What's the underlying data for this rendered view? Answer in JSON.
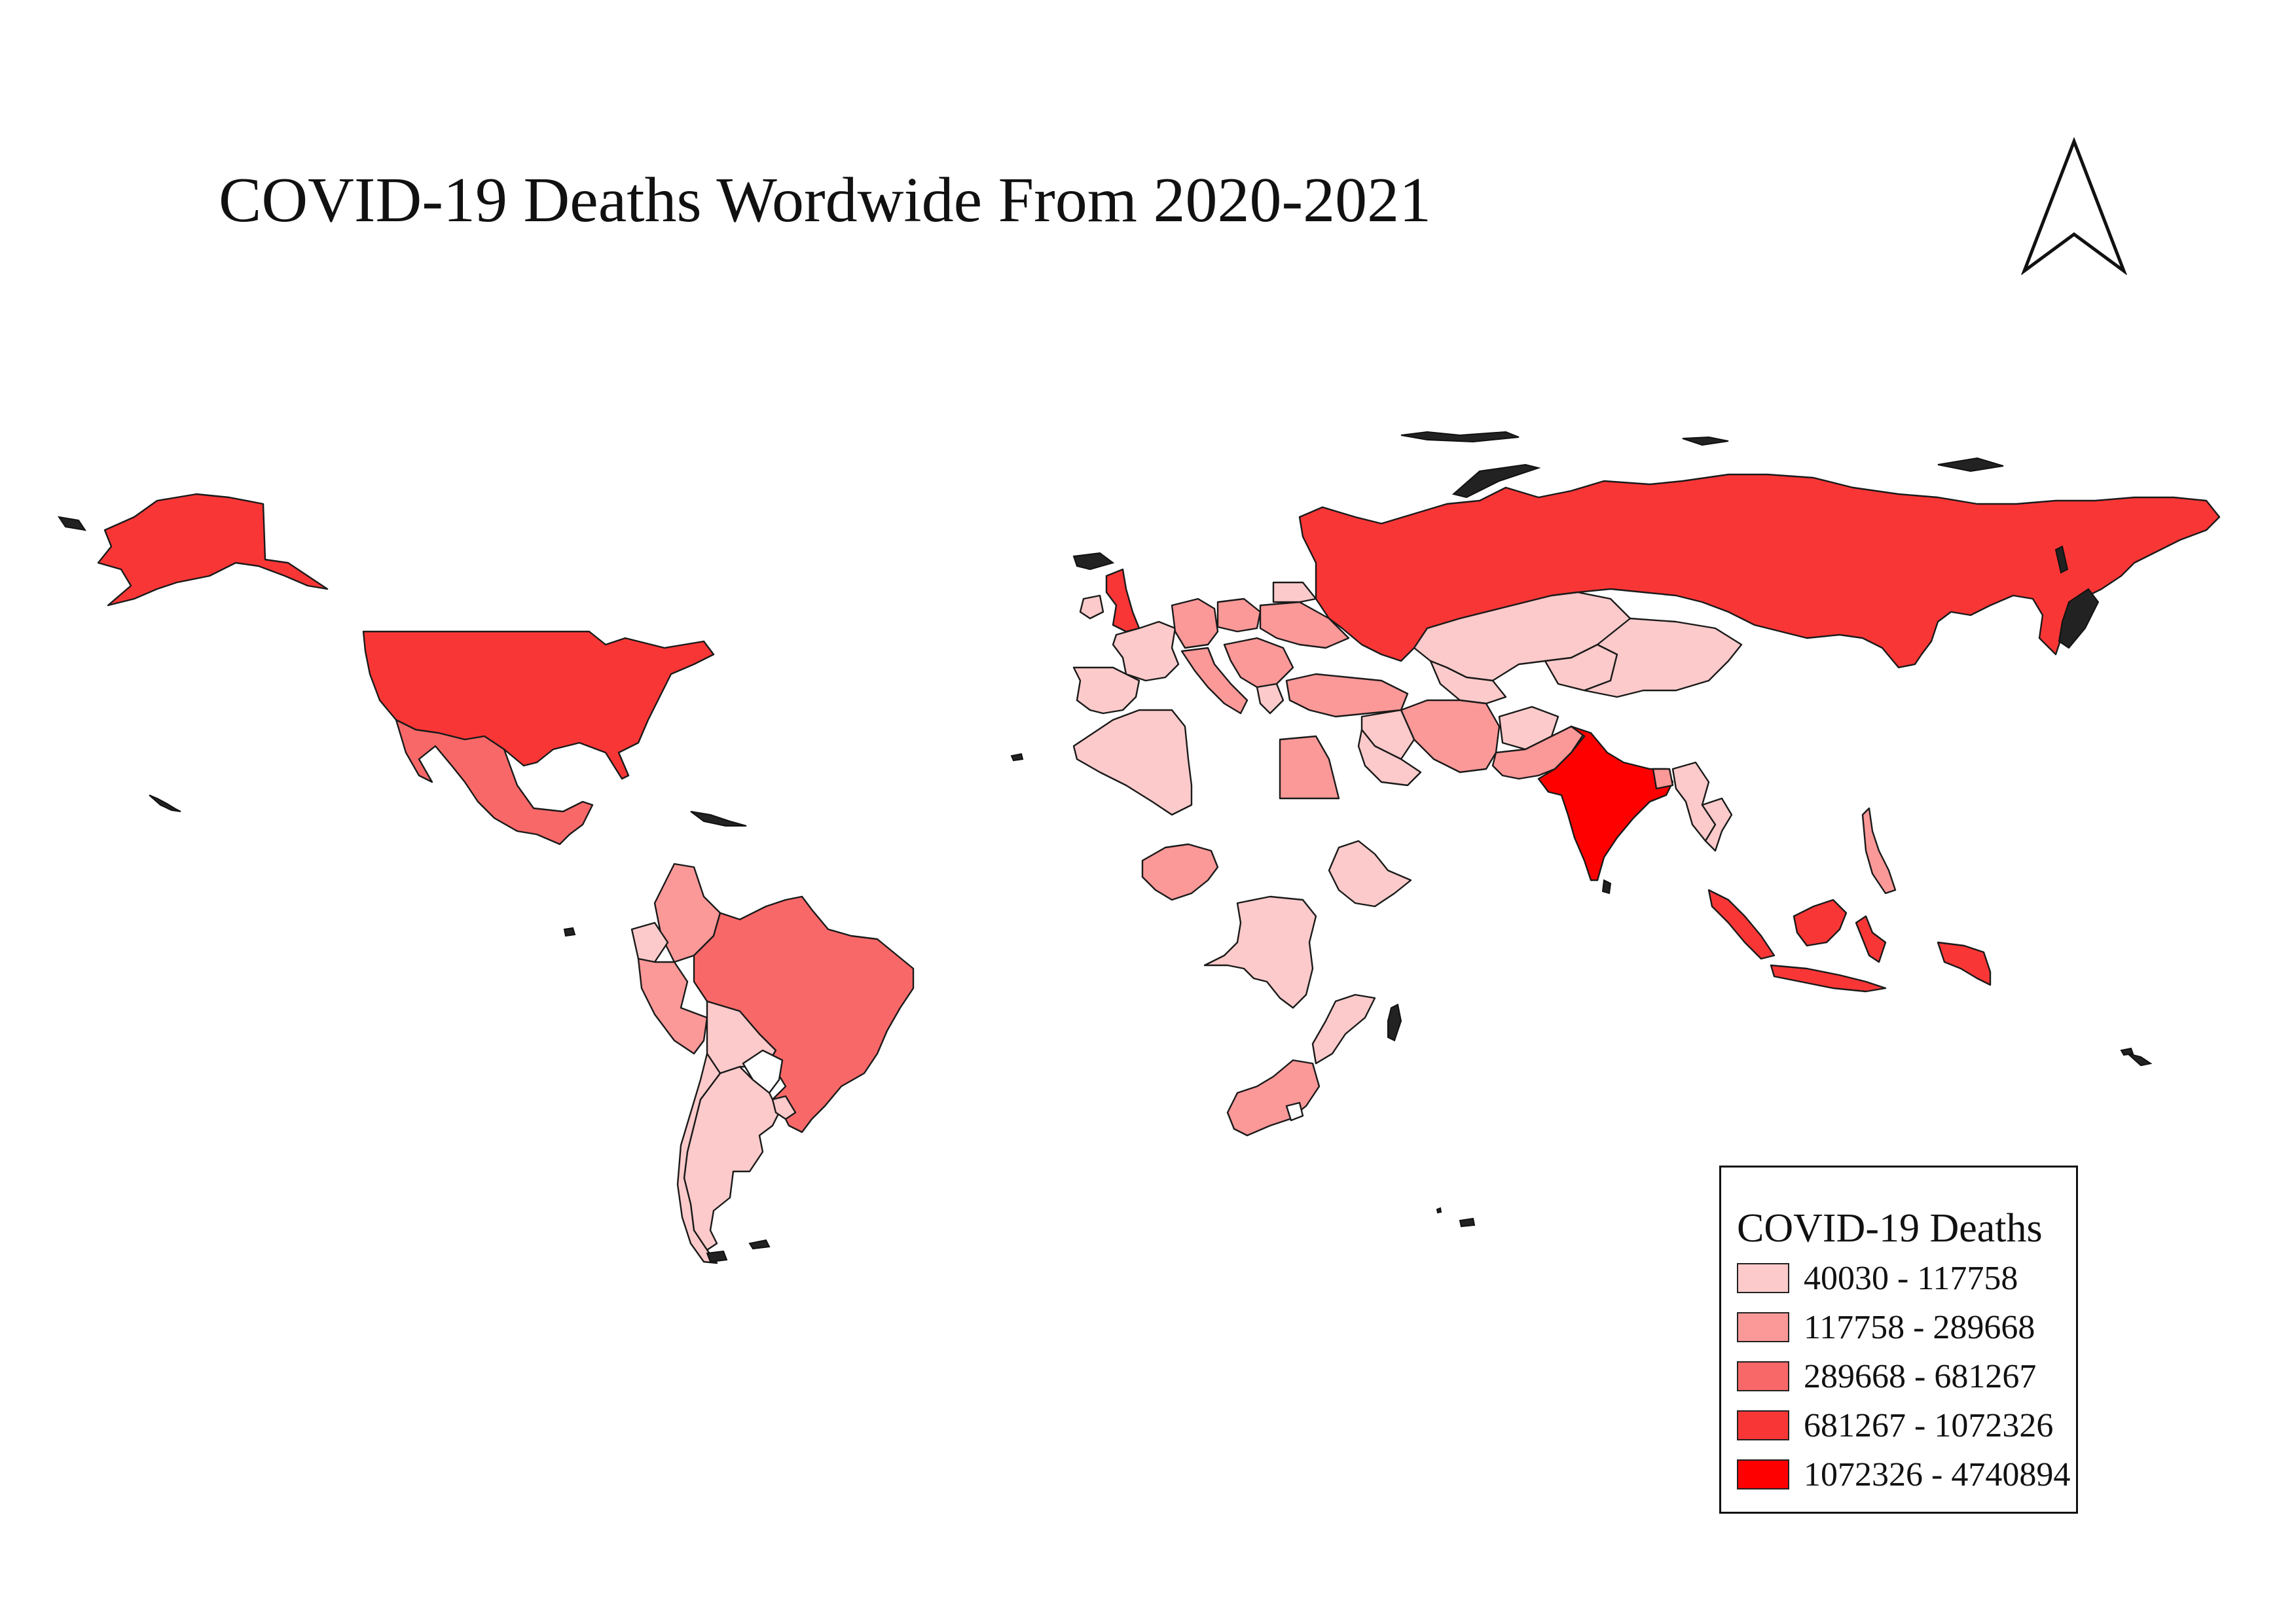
{
  "title": "COVID-19 Deaths Wordwide From 2020-2021",
  "legend": {
    "title": "COVID-19 Deaths",
    "classes": [
      {
        "label": "40030 - 117758",
        "color": "#fccaca"
      },
      {
        "label": "117758 - 289668",
        "color": "#fb9898"
      },
      {
        "label": "289668 - 681267",
        "color": "#f96868"
      },
      {
        "label": "681267 - 1072326",
        "color": "#f93636"
      },
      {
        "label": "1072326 - 4740894",
        "color": "#fe0000"
      }
    ]
  },
  "north_arrow": "north-arrow-icon",
  "outline_color": "#1a1a1a"
}
